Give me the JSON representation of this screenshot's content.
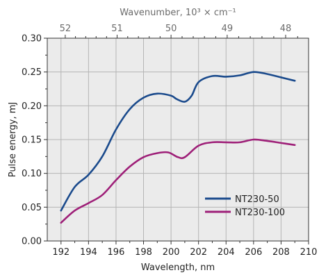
{
  "chart_data": {
    "type": "line",
    "xlabel": "Wavelength, nm",
    "ylabel": "Pulse energy, mJ",
    "top_axis_label": "Wavenumber, 10³ × cm⁻¹",
    "xlim": [
      191,
      210
    ],
    "ylim": [
      0,
      0.3
    ],
    "x_ticks": [
      192,
      194,
      196,
      198,
      200,
      202,
      204,
      206,
      208,
      210
    ],
    "y_ticks": [
      "0.00",
      "0.05",
      "0.10",
      "0.15",
      "0.20",
      "0.25",
      "0.30"
    ],
    "top_ticks": [
      "52",
      "51",
      "50",
      "49",
      "48"
    ],
    "grid": true,
    "legend_position": "lower-right",
    "series": [
      {
        "name": "NT230-50",
        "color": "#1a4a8c",
        "points": [
          [
            192,
            0.045
          ],
          [
            193,
            0.08
          ],
          [
            194,
            0.098
          ],
          [
            195,
            0.125
          ],
          [
            196,
            0.165
          ],
          [
            197,
            0.195
          ],
          [
            198,
            0.212
          ],
          [
            199,
            0.218
          ],
          [
            200,
            0.215
          ],
          [
            200.4,
            0.21
          ],
          [
            201,
            0.206
          ],
          [
            201.5,
            0.215
          ],
          [
            202,
            0.235
          ],
          [
            203,
            0.244
          ],
          [
            204,
            0.243
          ],
          [
            205,
            0.245
          ],
          [
            206,
            0.25
          ],
          [
            207,
            0.247
          ],
          [
            208,
            0.242
          ],
          [
            209,
            0.237
          ]
        ]
      },
      {
        "name": "NT230-100",
        "color": "#9e1f78",
        "points": [
          [
            192,
            0.027
          ],
          [
            193,
            0.045
          ],
          [
            194,
            0.056
          ],
          [
            195,
            0.068
          ],
          [
            196,
            0.09
          ],
          [
            197,
            0.11
          ],
          [
            198,
            0.124
          ],
          [
            199,
            0.13
          ],
          [
            199.8,
            0.131
          ],
          [
            200.5,
            0.124
          ],
          [
            201,
            0.124
          ],
          [
            202,
            0.141
          ],
          [
            203,
            0.146
          ],
          [
            204,
            0.146
          ],
          [
            205,
            0.146
          ],
          [
            206,
            0.15
          ],
          [
            207,
            0.148
          ],
          [
            208,
            0.145
          ],
          [
            209,
            0.142
          ]
        ]
      }
    ]
  }
}
